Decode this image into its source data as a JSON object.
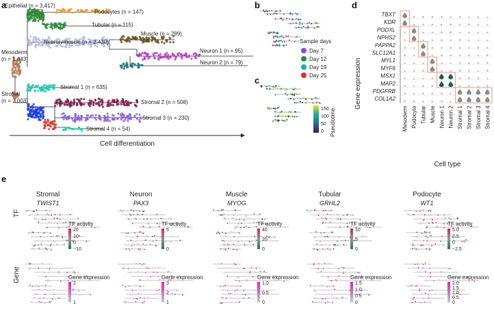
{
  "panels": {
    "a": "a",
    "b": "b",
    "c": "c",
    "d": "d",
    "e": "e"
  },
  "a": {
    "nodes": {
      "epithelial": "Epithelial (n = 3,417)",
      "podocytes": "Podocytes (n = 147)",
      "tubular": "Tubular (n = 115)",
      "muscle": "Muscle (n = 299)",
      "neuron_muscle": "Neuron/muscle (n = 2,430)",
      "mesoderm": "Mesoderm",
      "mesoderm_n": "(n = 1,643)",
      "neuron1": "Neuron 1 (n = 95)",
      "neuron2": "Neuron 2 (n = 79)",
      "stromal1": "Stromal 1 (n = 635)",
      "stromal": "Stromal",
      "stromal_n": "(n = 2,003)",
      "stromal2": "Stromal 2 (n = 508)",
      "stromal3": "Stromal 3 (n = 230)",
      "stromal4": "Stromal 4 (n = 54)"
    },
    "axis_label": "Cell differentiation",
    "colors": {
      "podocytes": "#e8a23a",
      "tubular": "#2e8b3a",
      "epithelial": "#2e8b3a",
      "muscle": "#6b4e1f",
      "neuron_muscle": "#b9bde0",
      "mesoderm": "#b07a5a",
      "neuron1": "#b83bbf",
      "neuron2": "#1f6e7a",
      "stromal1": "#2bc9b4",
      "stromal2": "#7b1c4a",
      "stromal3": "#8e62d9",
      "stromal4": "#d63b2e",
      "stromal": "#1f3fd6"
    }
  },
  "b": {
    "legend_title": "Sample days",
    "legend": [
      {
        "label": "Day 7",
        "color": "#8e44e0"
      },
      {
        "label": "Day 12",
        "color": "#2e8b3a"
      },
      {
        "label": "Day 19",
        "color": "#1fa6b0"
      },
      {
        "label": "Day 25",
        "color": "#d32f2f"
      }
    ]
  },
  "c": {
    "colorbar_label": "Pseudotime",
    "ticks": [
      "150",
      "100",
      "50",
      "0"
    ]
  },
  "d": {
    "ylabel": "Gene expression",
    "xlabel": "Cell type",
    "genes": [
      "TBXT",
      "KDR",
      "PODXL",
      "NPHS2",
      "PAPPA2",
      "SLC12A1",
      "MYL1",
      "MYF6",
      "MSX1",
      "MAP2",
      "PDGFRB",
      "COL1A2"
    ],
    "cell_types": [
      "Mesoderm",
      "Podocyte",
      "Tubular",
      "Muscle",
      "Neuron 1",
      "Neuron 2",
      "Stromal 1",
      "Stromal 2",
      "Stromal 3",
      "Stromal 4"
    ]
  },
  "e": {
    "columns": [
      {
        "type": "Stromal",
        "gene": "TWIST1",
        "tf_ticks": [
          "20",
          "10",
          "0",
          "−10"
        ],
        "expr_ticks": [
          "2",
          "1"
        ]
      },
      {
        "type": "Neuron",
        "gene": "PAX3",
        "tf_ticks": [
          "5",
          "0"
        ],
        "expr_ticks": [
          "3",
          "2",
          "1"
        ]
      },
      {
        "type": "Muscle",
        "gene": "MYOG",
        "tf_ticks": [
          "40",
          "20",
          "0"
        ],
        "expr_ticks": [
          "1.0",
          "0.5",
          "0"
        ]
      },
      {
        "type": "Tubular",
        "gene": "GRHL2",
        "tf_ticks": [
          "10",
          "5",
          "0"
        ],
        "expr_ticks": [
          "1.5",
          "1.0",
          "0.5",
          "0"
        ]
      },
      {
        "type": "Podocyte",
        "gene": "WT1",
        "tf_ticks": [
          "5.0",
          "2.5",
          "0",
          "−2.5"
        ],
        "expr_ticks": [
          "2.0",
          "1.5",
          "1.0",
          "0.5",
          "0"
        ]
      }
    ],
    "row_tf": "TF",
    "row_gene": "Gene",
    "tf_legend": "TF activity",
    "gene_legend": "Gene expression"
  }
}
